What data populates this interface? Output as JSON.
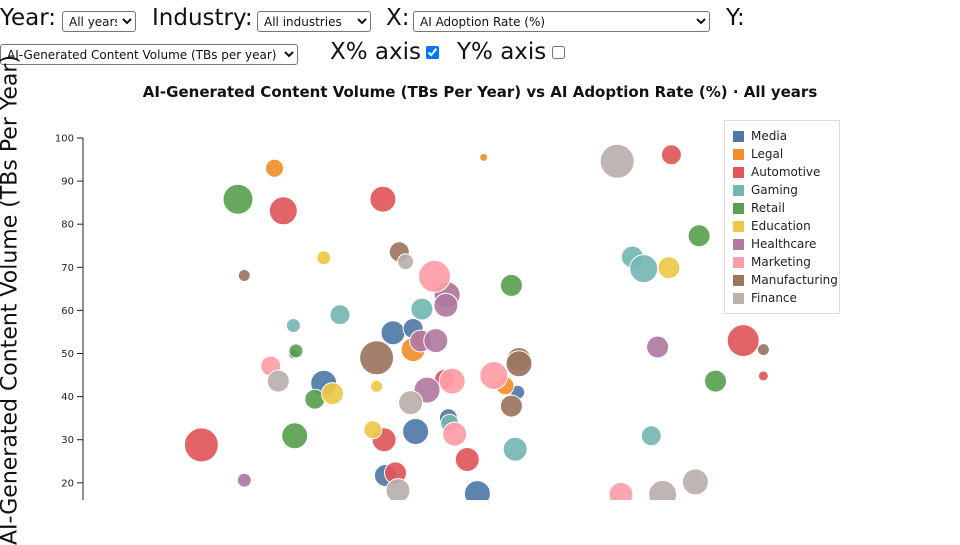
{
  "controls": {
    "year_label": "Year:",
    "year_value": "All years",
    "industry_label": "Industry:",
    "industry_value": "All industries",
    "x_label": "X:",
    "x_value": "AI Adoption Rate (%)",
    "y_label": "Y:",
    "y_value": "AI-Generated Content Volume (TBs per year)",
    "x_pct_label": "X% axis",
    "x_pct_checked": true,
    "y_pct_label": "Y% axis",
    "y_pct_checked": false
  },
  "chart_data": {
    "type": "scatter",
    "title": "AI-Generated Content Volume (TBs Per Year) vs AI Adoption Rate (%) · All years",
    "xlabel": "",
    "ylabel": "AI-Generated Content Volume (TBs Per Year)",
    "ylim": [
      17,
      100
    ],
    "yticks": [
      "20",
      "30",
      "40",
      "50",
      "60",
      "70",
      "80",
      "90",
      "100"
    ],
    "xlim": [
      0,
      100
    ],
    "legend_position": "top-right",
    "colors": {
      "Media": "#4e79a7",
      "Legal": "#f28e2b",
      "Automotive": "#e15759",
      "Gaming": "#76b7b2",
      "Retail": "#59a14f",
      "Education": "#edc948",
      "Healthcare": "#b07aa1",
      "Marketing": "#ff9da7",
      "Manufacturing": "#9c755f",
      "Finance": "#bab0ac"
    },
    "legend": [
      "Media",
      "Legal",
      "Automotive",
      "Gaming",
      "Retail",
      "Education",
      "Healthcare",
      "Marketing",
      "Manufacturing",
      "Finance"
    ],
    "series": [
      {
        "name": "Media",
        "points": [
          [
            16.7,
            49.9,
            5
          ],
          [
            19.1,
            43.1,
            13
          ],
          [
            24.0,
            21.7,
            11
          ],
          [
            24.6,
            54.8,
            12
          ],
          [
            26.4,
            31.9,
            13
          ],
          [
            26.2,
            55.8,
            10
          ],
          [
            29.0,
            35.1,
            9
          ],
          [
            34.5,
            41.0,
            7
          ],
          [
            31.3,
            17.5,
            13
          ]
        ]
      },
      {
        "name": "Legal",
        "points": [
          [
            15.2,
            93.0,
            9
          ],
          [
            26.2,
            50.9,
            12
          ],
          [
            26.8,
            53.3,
            9
          ],
          [
            31.8,
            95.5,
            4
          ],
          [
            33.5,
            42.5,
            9
          ]
        ]
      },
      {
        "name": "Automotive",
        "points": [
          [
            9.4,
            28.8,
            17
          ],
          [
            15.9,
            83.1,
            14
          ],
          [
            23.8,
            85.8,
            13
          ],
          [
            23.9,
            30.0,
            12
          ],
          [
            24.8,
            22.3,
            11
          ],
          [
            28.7,
            44.0,
            10
          ],
          [
            30.5,
            25.4,
            12
          ],
          [
            46.7,
            96.1,
            10
          ],
          [
            52.4,
            53.0,
            16
          ],
          [
            54.0,
            44.8,
            5
          ]
        ]
      },
      {
        "name": "Gaming",
        "points": [
          [
            16.7,
            56.5,
            7
          ],
          [
            20.4,
            59.0,
            10
          ],
          [
            26.9,
            60.3,
            11
          ],
          [
            29.1,
            33.8,
            9
          ],
          [
            34.3,
            27.8,
            12
          ],
          [
            43.6,
            72.4,
            11
          ],
          [
            44.5,
            69.7,
            14
          ],
          [
            45.1,
            30.9,
            10
          ]
        ]
      },
      {
        "name": "Retail",
        "points": [
          [
            12.3,
            85.8,
            15
          ],
          [
            16.9,
            50.6,
            7
          ],
          [
            16.8,
            30.9,
            13
          ],
          [
            18.4,
            39.4,
            10
          ],
          [
            34.0,
            65.8,
            11
          ],
          [
            48.9,
            77.3,
            11
          ],
          [
            50.2,
            43.6,
            11
          ]
        ]
      },
      {
        "name": "Education",
        "points": [
          [
            19.1,
            72.2,
            7
          ],
          [
            19.8,
            40.7,
            11
          ],
          [
            23.0,
            32.3,
            9
          ],
          [
            23.3,
            42.4,
            6
          ],
          [
            28.9,
            63.9,
            13
          ],
          [
            46.5,
            69.9,
            11
          ]
        ]
      },
      {
        "name": "Healthcare",
        "points": [
          [
            12.8,
            20.6,
            7
          ],
          [
            26.8,
            52.9,
            11
          ],
          [
            27.3,
            41.5,
            13
          ],
          [
            28.0,
            53.0,
            12
          ],
          [
            28.9,
            63.6,
            13
          ],
          [
            28.8,
            61.2,
            12
          ],
          [
            45.6,
            51.5,
            11
          ]
        ]
      },
      {
        "name": "Marketing",
        "points": [
          [
            14.9,
            47.1,
            10
          ],
          [
            27.9,
            67.9,
            16
          ],
          [
            29.3,
            43.6,
            13
          ],
          [
            29.5,
            31.3,
            12
          ],
          [
            32.6,
            44.9,
            14
          ],
          [
            42.7,
            17.3,
            12
          ]
        ]
      },
      {
        "name": "Manufacturing",
        "points": [
          [
            12.8,
            68.1,
            6
          ],
          [
            23.3,
            49.0,
            17
          ],
          [
            25.1,
            73.6,
            10
          ],
          [
            34.6,
            48.6,
            12
          ],
          [
            34.0,
            37.8,
            11
          ],
          [
            34.6,
            47.6,
            13
          ],
          [
            54.0,
            50.9,
            6
          ]
        ]
      },
      {
        "name": "Finance",
        "points": [
          [
            15.5,
            43.6,
            11
          ],
          [
            25.6,
            71.3,
            8
          ],
          [
            26.0,
            38.6,
            12
          ],
          [
            25.0,
            18.2,
            12
          ],
          [
            42.4,
            94.6,
            17
          ],
          [
            46.0,
            17.3,
            14
          ],
          [
            48.6,
            20.2,
            13
          ]
        ]
      }
    ]
  }
}
